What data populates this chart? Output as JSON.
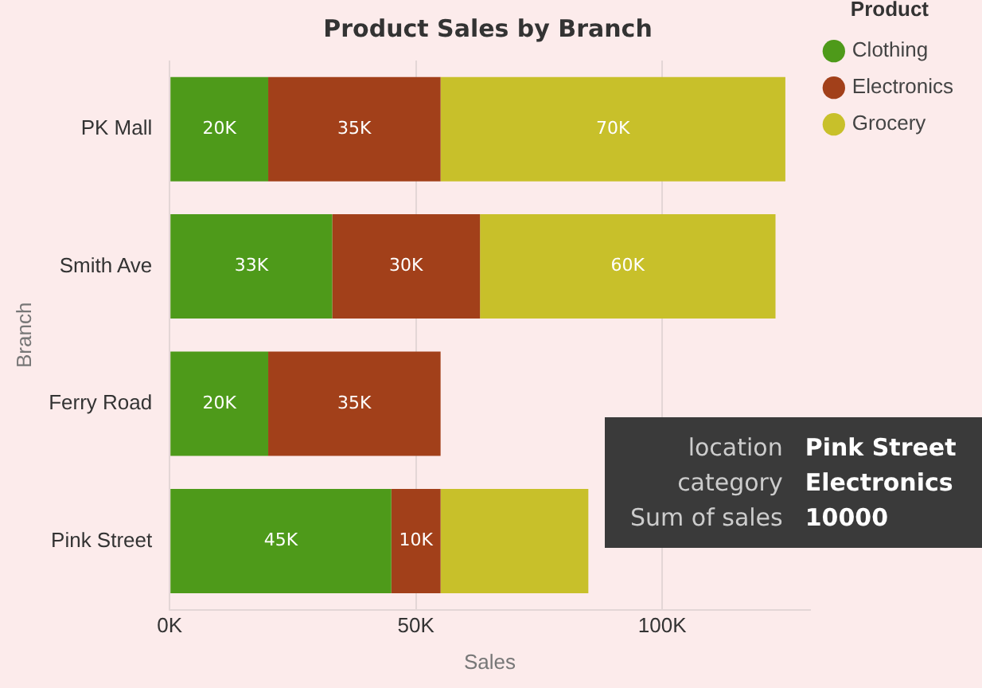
{
  "chart_data": {
    "type": "bar",
    "orientation": "horizontal",
    "stacked": true,
    "title": "Product Sales by Branch",
    "xlabel": "Sales",
    "ylabel": "Branch",
    "legend_title": "Product",
    "legend": "top right",
    "grid": "x",
    "categories": [
      "PK Mall",
      "Smith Ave",
      "Ferry Road",
      "Pink Street"
    ],
    "series": [
      {
        "name": "Clothing",
        "color": "#4e9a1a",
        "values": [
          20000,
          33000,
          20000,
          45000
        ],
        "value_labels": [
          "20K",
          "33K",
          "20K",
          "45K"
        ]
      },
      {
        "name": "Electronics",
        "color": "#a2401a",
        "values": [
          35000,
          30000,
          35000,
          10000
        ],
        "value_labels": [
          "35K",
          "30K",
          "35K",
          "10K"
        ]
      },
      {
        "name": "Grocery",
        "color": "#c8c02a",
        "values": [
          70000,
          60000,
          null,
          30000
        ],
        "value_labels": [
          "70K",
          "60K",
          null,
          null
        ]
      }
    ],
    "xlim": [
      0,
      130000
    ],
    "xticks": [
      {
        "value": 0,
        "label": "0K"
      },
      {
        "value": 50000,
        "label": "50K"
      },
      {
        "value": 100000,
        "label": "100K"
      }
    ],
    "annotations": [
      "location",
      "Pink Street",
      "category",
      "Electronics",
      "Sum of sales",
      "10000"
    ]
  }
}
